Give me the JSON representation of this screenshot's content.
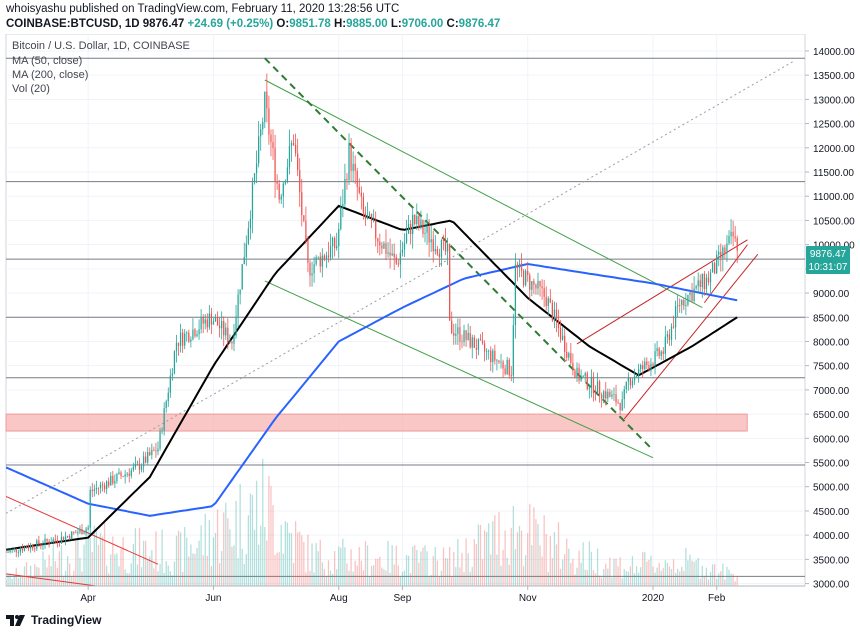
{
  "header": {
    "publish_line": "whoisyashu published on TradingView.com, February 11, 2020 13:28:56 UTC",
    "symbol": "COINBASE:BTCUSD, 1D",
    "price": "9876.47",
    "change": "+24.69 (+0.25%)",
    "open_label": "O:",
    "open": "9851.78",
    "high_label": "H:",
    "high": "9885.00",
    "low_label": "L:",
    "low": "9706.00",
    "close_label": "C:",
    "close": "9876.47"
  },
  "legend": {
    "title": "Bitcoin / U.S. Dollar, 1D, COINBASE",
    "ma50": "MA (50, close)",
    "ma200": "MA (200, close)",
    "vol": "Vol (20)"
  },
  "price_badge": {
    "price": "9876.47",
    "countdown": "10:31:07"
  },
  "footer": {
    "brand": "TradingView"
  },
  "colors": {
    "up": "#26a69a",
    "down": "#ef5350",
    "ma50": "#000000",
    "ma200": "#2962ff",
    "badge": "#26a69a",
    "zone": "#f8b4b4",
    "channel": "#c62828",
    "wedge": "#43a047"
  },
  "chart_data": {
    "type": "candlestick",
    "title": "Bitcoin / U.S. Dollar, 1D, COINBASE",
    "x_ticks": [
      "Apr",
      "Jun",
      "Aug",
      "Sep",
      "Nov",
      "2020",
      "Feb"
    ],
    "x_tick_dates": [
      "2019-04-01",
      "2019-06-01",
      "2019-08-01",
      "2019-09-01",
      "2019-11-01",
      "2020-01-01",
      "2020-02-01"
    ],
    "y_ticks": [
      3000,
      3500,
      4000,
      4500,
      5000,
      5500,
      6000,
      6500,
      7000,
      7500,
      8000,
      8500,
      9000,
      9500,
      10000,
      10500,
      11000,
      11500,
      12000,
      12500,
      13000,
      13500,
      14000
    ],
    "y_range": [
      2950,
      14350
    ],
    "x_range": [
      "2019-02-20",
      "2020-03-15"
    ],
    "last_price": 9876.47,
    "horizontal_levels": [
      13850,
      11300,
      9700,
      8500,
      7250,
      5450,
      3150
    ],
    "support_zone": {
      "from": "2019-02-20",
      "to": "2020-02-11",
      "low": 6150,
      "high": 6500
    },
    "ohlc_keyframes": [
      [
        "2019-02-20",
        3650
      ],
      [
        "2019-03-20",
        3950
      ],
      [
        "2019-04-01",
        4150
      ],
      [
        "2019-04-02",
        4900
      ],
      [
        "2019-04-25",
        5400
      ],
      [
        "2019-05-05",
        5800
      ],
      [
        "2019-05-14",
        8000
      ],
      [
        "2019-05-31",
        8500
      ],
      [
        "2019-06-10",
        8000
      ],
      [
        "2019-06-26",
        12900
      ],
      [
        "2019-07-03",
        11000
      ],
      [
        "2019-07-10",
        12200
      ],
      [
        "2019-07-17",
        9500
      ],
      [
        "2019-07-31",
        10000
      ],
      [
        "2019-08-06",
        11900
      ],
      [
        "2019-08-13",
        10600
      ],
      [
        "2019-08-29",
        9600
      ],
      [
        "2019-09-06",
        10500
      ],
      [
        "2019-09-23",
        9800
      ],
      [
        "2019-09-24",
        8300
      ],
      [
        "2019-10-24",
        7400
      ],
      [
        "2019-10-26",
        9500
      ],
      [
        "2019-11-10",
        8900
      ],
      [
        "2019-11-25",
        7300
      ],
      [
        "2019-12-17",
        6700
      ],
      [
        "2019-12-20",
        7200
      ],
      [
        "2020-01-06",
        7800
      ],
      [
        "2020-01-14",
        8800
      ],
      [
        "2020-01-28",
        9300
      ],
      [
        "2020-02-09",
        10150
      ],
      [
        "2020-02-11",
        9876
      ]
    ],
    "ma50_keyframes": [
      [
        "2019-02-20",
        3700
      ],
      [
        "2019-04-01",
        3950
      ],
      [
        "2019-05-01",
        5200
      ],
      [
        "2019-06-01",
        7500
      ],
      [
        "2019-07-01",
        9400
      ],
      [
        "2019-08-01",
        10800
      ],
      [
        "2019-09-01",
        10300
      ],
      [
        "2019-09-25",
        10500
      ],
      [
        "2019-11-01",
        8900
      ],
      [
        "2019-12-01",
        7900
      ],
      [
        "2019-12-25",
        7300
      ],
      [
        "2020-01-20",
        7900
      ],
      [
        "2020-02-11",
        8500
      ]
    ],
    "ma200_keyframes": [
      [
        "2019-02-20",
        5400
      ],
      [
        "2019-04-01",
        4650
      ],
      [
        "2019-05-01",
        4400
      ],
      [
        "2019-06-01",
        4600
      ],
      [
        "2019-07-01",
        6400
      ],
      [
        "2019-08-01",
        8000
      ],
      [
        "2019-09-01",
        8700
      ],
      [
        "2019-10-01",
        9300
      ],
      [
        "2019-11-01",
        9600
      ],
      [
        "2019-12-01",
        9400
      ],
      [
        "2020-01-01",
        9200
      ],
      [
        "2020-02-11",
        8850
      ]
    ],
    "volume_keyframes": [
      [
        "2019-02-20",
        3200
      ],
      [
        "2019-04-02",
        4300
      ],
      [
        "2019-05-15",
        4100
      ],
      [
        "2019-06-26",
        5800
      ],
      [
        "2019-07-18",
        4000
      ],
      [
        "2019-09-24",
        3800
      ],
      [
        "2019-10-25",
        5000
      ],
      [
        "2019-11-25",
        4000
      ],
      [
        "2019-12-20",
        3600
      ],
      [
        "2020-01-14",
        3800
      ],
      [
        "2020-02-11",
        3300
      ]
    ],
    "trendlines": [
      {
        "name": "wedge-upper",
        "color": "#43a047",
        "style": "solid",
        "points": [
          [
            "2019-06-26",
            13400
          ],
          [
            "2020-01-25",
            8700
          ]
        ]
      },
      {
        "name": "wedge-lower",
        "color": "#43a047",
        "style": "solid",
        "points": [
          [
            "2019-06-26",
            9250
          ],
          [
            "2020-01-01",
            5600
          ]
        ]
      },
      {
        "name": "falling-dashed",
        "color": "#2e7d32",
        "style": "dashed",
        "points": [
          [
            "2019-06-26",
            13850
          ],
          [
            "2019-12-31",
            5800
          ]
        ]
      },
      {
        "name": "rising-dotted",
        "color": "#9e9e9e",
        "style": "dotted",
        "points": [
          [
            "2019-02-20",
            4450
          ],
          [
            "2020-03-10",
            13800
          ]
        ]
      },
      {
        "name": "channel-upper",
        "color": "#c62828",
        "style": "solid",
        "points": [
          [
            "2019-11-25",
            7950
          ],
          [
            "2020-02-16",
            10100
          ]
        ]
      },
      {
        "name": "channel-lower",
        "color": "#c62828",
        "style": "solid",
        "points": [
          [
            "2019-12-18",
            6400
          ],
          [
            "2020-02-21",
            9800
          ]
        ]
      },
      {
        "name": "channel-middle",
        "color": "#c62828",
        "style": "solid",
        "points": [
          [
            "2020-01-26",
            8800
          ],
          [
            "2020-02-16",
            10000
          ]
        ]
      },
      {
        "name": "early-red-1",
        "color": "#e53935",
        "style": "solid",
        "points": [
          [
            "2019-02-20",
            4800
          ],
          [
            "2019-05-05",
            3400
          ]
        ]
      },
      {
        "name": "early-red-2",
        "color": "#e53935",
        "style": "solid",
        "points": [
          [
            "2019-02-20",
            3200
          ],
          [
            "2019-04-05",
            2950
          ]
        ]
      }
    ]
  }
}
